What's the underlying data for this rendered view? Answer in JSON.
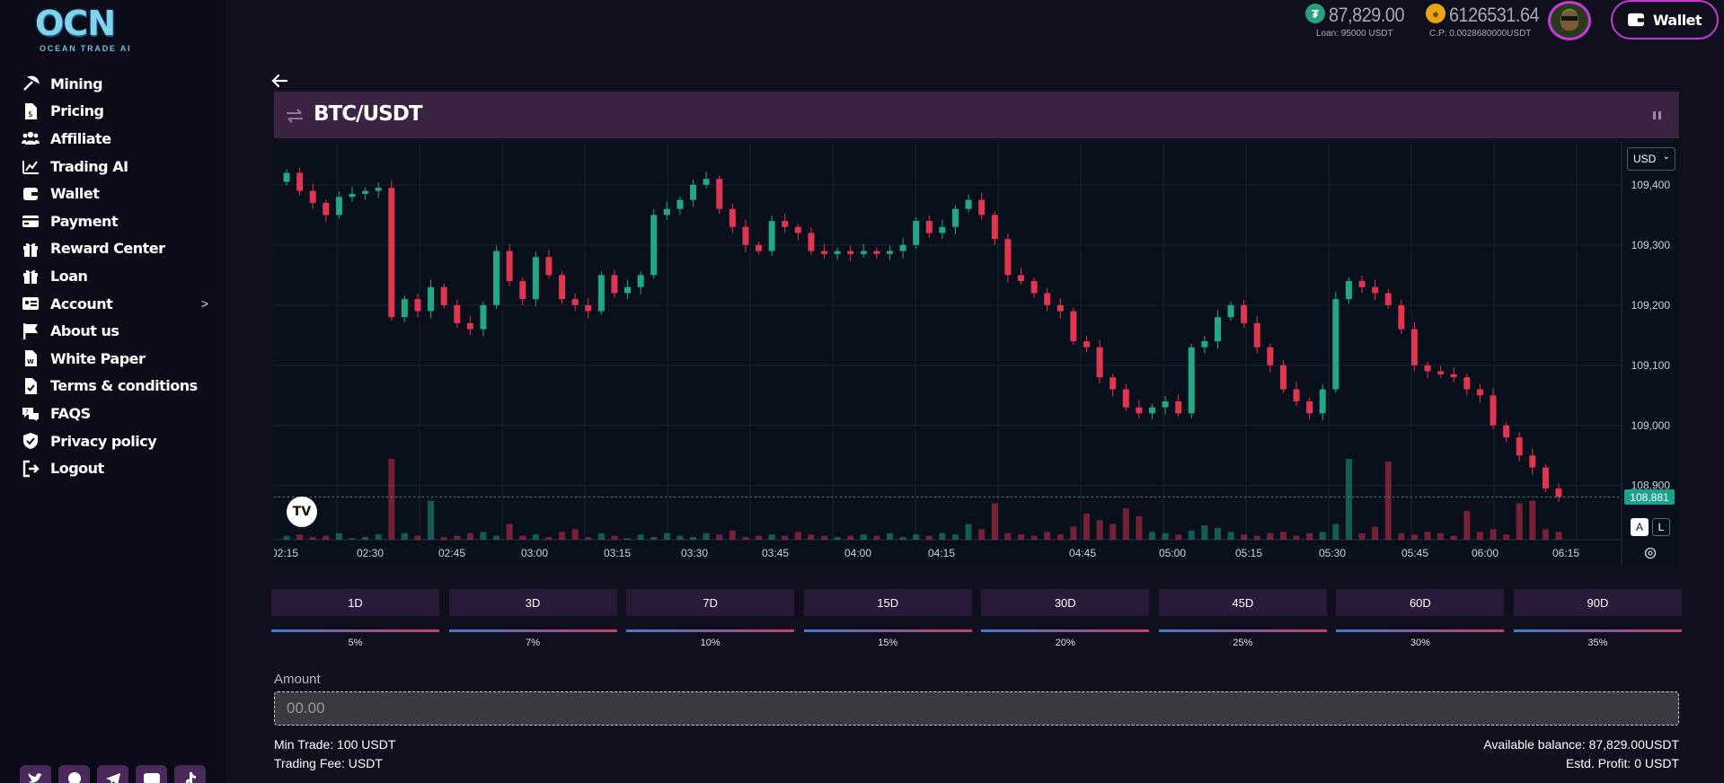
{
  "brand": {
    "logo_text": "OCN",
    "subtitle": "OCEAN TRADE AI"
  },
  "sidebar": {
    "items": [
      {
        "label": "Mining",
        "icon": "pickaxe-icon"
      },
      {
        "label": "Pricing",
        "icon": "invoice-dollar-icon"
      },
      {
        "label": "Affiliate",
        "icon": "users-icon"
      },
      {
        "label": "Trading AI",
        "icon": "chart-line-icon"
      },
      {
        "label": "Wallet",
        "icon": "wallet-icon"
      },
      {
        "label": "Payment",
        "icon": "credit-card-icon"
      },
      {
        "label": "Reward Center",
        "icon": "gift-icon"
      },
      {
        "label": "Loan",
        "icon": "gift-icon"
      },
      {
        "label": "Account",
        "icon": "id-card-icon",
        "has_submenu": true
      },
      {
        "label": "About us",
        "icon": "flag-icon"
      },
      {
        "label": "White Paper",
        "icon": "document-w-icon"
      },
      {
        "label": "Terms & conditions",
        "icon": "document-check-icon"
      },
      {
        "label": "FAQS",
        "icon": "chat-question-icon"
      },
      {
        "label": "Privacy policy",
        "icon": "shield-check-icon"
      },
      {
        "label": "Logout",
        "icon": "logout-icon"
      }
    ],
    "social": [
      "twitter-icon",
      "facebook-icon",
      "telegram-icon",
      "youtube-icon",
      "tiktok-icon"
    ]
  },
  "header": {
    "usdt_balance": "87,829.00",
    "loan_text": "Loan: 95000 USDT",
    "coin_balance": "6126531.64",
    "cp_text": "C.P: 0.0028680000USDT",
    "wallet_label": "Wallet",
    "colors": {
      "usdt": "#26a17b",
      "coin": "#e8a317",
      "accent": "#c23bd4"
    }
  },
  "pair": {
    "title": "BTC/USDT"
  },
  "chart_data": {
    "type": "candlestick",
    "currency_select": "USD",
    "last_price_label": "108,881",
    "y_ticks": [
      "109,400",
      "109,300",
      "109,200",
      "109,100",
      "109,000",
      "108,900"
    ],
    "x_ticks": [
      "02:15",
      "02:30",
      "02:45",
      "03:00",
      "03:15",
      "03:30",
      "03:45",
      "04:00",
      "04:15",
      "04:45",
      "05:00",
      "05:15",
      "05:30",
      "05:45",
      "06:00",
      "06:15"
    ],
    "ylim": [
      108810,
      109470
    ],
    "close_series": [
      109420,
      109390,
      109370,
      109350,
      109380,
      109385,
      109390,
      109395,
      109180,
      109210,
      109190,
      109230,
      109200,
      109170,
      109160,
      109200,
      109290,
      109240,
      109210,
      109280,
      109250,
      109210,
      109200,
      109190,
      109250,
      109220,
      109230,
      109250,
      109350,
      109360,
      109375,
      109400,
      109410,
      109360,
      109330,
      109300,
      109290,
      109340,
      109330,
      109320,
      109290,
      109285,
      109290,
      109285,
      109290,
      109285,
      109290,
      109300,
      109340,
      109320,
      109330,
      109360,
      109375,
      109350,
      109310,
      109250,
      109240,
      109220,
      109200,
      109190,
      109140,
      109130,
      109080,
      109060,
      109030,
      109020,
      109030,
      109040,
      109020,
      109130,
      109140,
      109180,
      109200,
      109170,
      109130,
      109100,
      109060,
      109040,
      109020,
      109060,
      109210,
      109240,
      109230,
      109220,
      109200,
      109160,
      109100,
      109090,
      109085,
      109080,
      109060,
      109050,
      109000,
      108980,
      108950,
      108930,
      108895,
      108881
    ],
    "volumes": [
      3,
      4,
      2,
      3,
      5,
      1,
      2,
      4,
      62,
      5,
      3,
      30,
      2,
      3,
      5,
      6,
      3,
      12,
      3,
      4,
      2,
      6,
      8,
      2,
      5,
      3,
      1,
      4,
      2,
      5,
      3,
      2,
      5,
      4,
      7,
      2,
      3,
      4,
      3,
      6,
      4,
      3,
      2,
      3,
      4,
      3,
      5,
      2,
      4,
      3,
      5,
      4,
      12,
      8,
      28,
      5,
      4,
      3,
      6,
      4,
      10,
      20,
      15,
      12,
      24,
      18,
      6,
      5,
      4,
      7,
      11,
      9,
      6,
      4,
      3,
      5,
      6,
      3,
      5,
      6,
      12,
      62,
      5,
      10,
      60,
      5,
      4,
      6,
      5,
      3,
      22,
      6,
      8,
      4,
      28,
      30,
      8,
      6
    ]
  },
  "durations": [
    {
      "label": "1D",
      "pct": "5%"
    },
    {
      "label": "3D",
      "pct": "7%"
    },
    {
      "label": "7D",
      "pct": "10%"
    },
    {
      "label": "15D",
      "pct": "15%"
    },
    {
      "label": "30D",
      "pct": "20%"
    },
    {
      "label": "45D",
      "pct": "25%"
    },
    {
      "label": "60D",
      "pct": "30%"
    },
    {
      "label": "90D",
      "pct": "35%"
    }
  ],
  "amount": {
    "label": "Amount",
    "placeholder": "00.00"
  },
  "trade_info": {
    "min_trade": "Min Trade: 100 USDT",
    "trading_fee": "Trading Fee:  USDT",
    "available_balance": "Available balance: 87,829.00USDT",
    "est_profit": "Estd. Profit: 0 USDT"
  }
}
